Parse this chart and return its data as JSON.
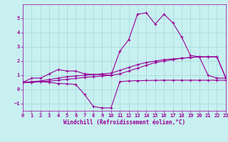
{
  "background_color": "#c8f0f0",
  "grid_color": "#a0d8d8",
  "line_color": "#990099",
  "xlabel": "Windchill (Refroidissement éolien,°C)",
  "xlim": [
    0,
    23
  ],
  "ylim": [
    -1.5,
    6
  ],
  "yticks": [
    -1,
    0,
    1,
    2,
    3,
    4,
    5
  ],
  "xticks": [
    0,
    1,
    2,
    3,
    4,
    5,
    6,
    7,
    8,
    9,
    10,
    11,
    12,
    13,
    14,
    15,
    16,
    17,
    18,
    19,
    20,
    21,
    22,
    23
  ],
  "series": [
    {
      "x": [
        0,
        1,
        2,
        3,
        4,
        5,
        6,
        7,
        10,
        11,
        12,
        13,
        14,
        15,
        16,
        17,
        18,
        19,
        20,
        21,
        22,
        23
      ],
      "y": [
        0.5,
        0.8,
        0.8,
        1.1,
        1.4,
        1.3,
        1.3,
        1.1,
        1.0,
        2.7,
        3.5,
        5.3,
        5.4,
        4.6,
        5.3,
        4.7,
        3.7,
        2.4,
        2.3,
        1.0,
        0.8,
        0.8
      ]
    },
    {
      "x": [
        0,
        1,
        2,
        3,
        4,
        5,
        6,
        7,
        8,
        9,
        10,
        11,
        12,
        13,
        14,
        15,
        16,
        17,
        18,
        19,
        20,
        21,
        22,
        23
      ],
      "y": [
        0.5,
        0.55,
        0.6,
        0.7,
        0.8,
        0.9,
        0.95,
        1.0,
        1.05,
        1.1,
        1.15,
        1.35,
        1.55,
        1.75,
        1.9,
        2.0,
        2.1,
        2.15,
        2.2,
        2.25,
        2.3,
        2.3,
        2.3,
        0.85
      ]
    },
    {
      "x": [
        0,
        1,
        2,
        3,
        4,
        5,
        6,
        7,
        8,
        9,
        10,
        11,
        12,
        13,
        14,
        15,
        16,
        17,
        18,
        19,
        20,
        21,
        22,
        23
      ],
      "y": [
        0.5,
        0.5,
        0.55,
        0.5,
        0.42,
        0.4,
        0.35,
        -0.35,
        -1.2,
        -1.3,
        -1.3,
        0.55,
        0.6,
        0.62,
        0.63,
        0.64,
        0.65,
        0.65,
        0.65,
        0.65,
        0.65,
        0.65,
        0.65,
        0.65
      ]
    },
    {
      "x": [
        0,
        1,
        2,
        3,
        4,
        5,
        6,
        7,
        8,
        9,
        10,
        11,
        12,
        13,
        14,
        15,
        16,
        17,
        18,
        19,
        20,
        21,
        22,
        23
      ],
      "y": [
        0.5,
        0.5,
        0.55,
        0.58,
        0.65,
        0.72,
        0.78,
        0.85,
        0.9,
        0.95,
        1.0,
        1.1,
        1.3,
        1.5,
        1.7,
        1.9,
        2.0,
        2.1,
        2.2,
        2.25,
        2.3,
        2.3,
        2.3,
        0.8
      ]
    }
  ]
}
